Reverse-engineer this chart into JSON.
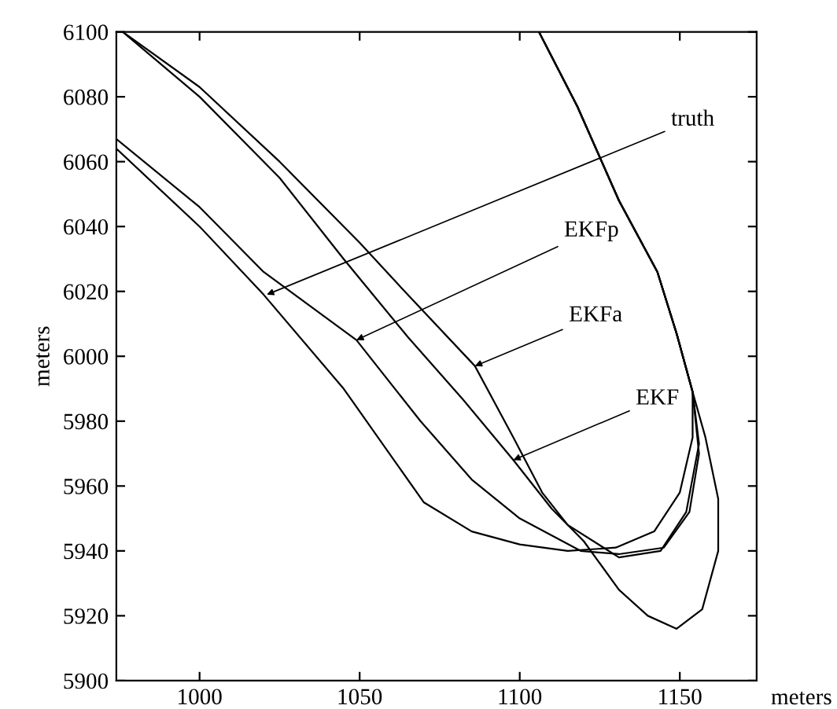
{
  "chart_data": {
    "type": "line",
    "xlabel": "meters",
    "ylabel": "meters",
    "xlim": [
      974,
      1174
    ],
    "ylim": [
      5900,
      6100
    ],
    "xticks": [
      1000,
      1050,
      1100,
      1150
    ],
    "yticks": [
      5900,
      5920,
      5940,
      5960,
      5980,
      6000,
      6020,
      6040,
      6060,
      6080,
      6100
    ],
    "grid": false,
    "legend": false,
    "marker": "none",
    "line_style": "solid",
    "series": [
      {
        "color": "#000000",
        "x": [
          974,
          1000,
          1020,
          1045,
          1070,
          1085,
          1100,
          1115,
          1130,
          1142,
          1150,
          1154,
          1154,
          1149,
          1143,
          1131,
          1118,
          1106
        ],
        "values": [
          6064,
          6040,
          6019,
          5990,
          5955,
          5946,
          5942,
          5940,
          5941,
          5946,
          5958,
          5975,
          5989,
          6007,
          6026,
          6048,
          6077,
          6100
        ]
      },
      {
        "color": "#000000",
        "x": [
          974,
          1000,
          1020,
          1049,
          1069,
          1085,
          1100,
          1119,
          1131,
          1145,
          1153,
          1156,
          1154,
          1149,
          1143,
          1131,
          1118,
          1106
        ],
        "values": [
          6067,
          6046,
          6026,
          6005,
          5980,
          5962,
          5950,
          5940,
          5939,
          5941,
          5952,
          5970,
          5989,
          6007,
          6026,
          6048,
          6077,
          6100
        ]
      },
      {
        "color": "#000000",
        "x": [
          976,
          1000,
          1025,
          1050,
          1065,
          1086,
          1098,
          1107,
          1115,
          1131,
          1144,
          1152,
          1156,
          1154,
          1149,
          1143,
          1131,
          1118,
          1106
        ],
        "values": [
          6100,
          6083,
          6060,
          6035,
          6019,
          5997,
          5975,
          5958,
          5948,
          5938,
          5940,
          5952,
          5973,
          5989,
          6007,
          6026,
          6048,
          6077,
          6100
        ]
      },
      {
        "color": "#000000",
        "x": [
          976,
          1000,
          1025,
          1045,
          1065,
          1082,
          1098,
          1110,
          1120,
          1131,
          1140,
          1149,
          1157,
          1162,
          1162,
          1158,
          1154,
          1149,
          1143,
          1131,
          1118,
          1106
        ],
        "values": [
          6100,
          6080,
          6055,
          6030,
          6006,
          5987,
          5968,
          5953,
          5943,
          5928,
          5920,
          5916,
          5922,
          5940,
          5956,
          5975,
          5989,
          6007,
          6026,
          6048,
          6077,
          6100
        ]
      }
    ],
    "annotations": [
      {
        "text": "truth",
        "x": 1021,
        "y": 6019
      },
      {
        "text": "EKFp",
        "x": 1049,
        "y": 6005
      },
      {
        "text": "EKFa",
        "x": 1086,
        "y": 5997
      },
      {
        "text": "EKF",
        "x": 1098,
        "y": 5968
      }
    ]
  }
}
